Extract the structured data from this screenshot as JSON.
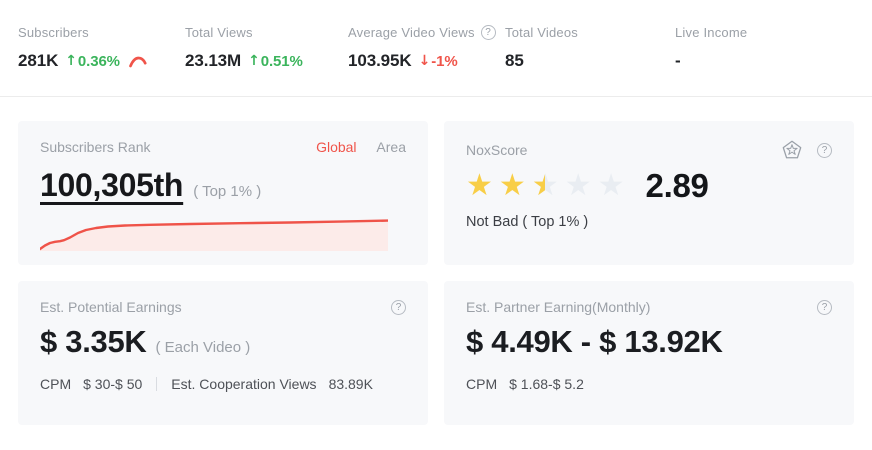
{
  "colors": {
    "green": "#3bb45c",
    "red": "#f0544a",
    "star_yellow": "#f8ce47",
    "star_empty": "#e9edf2",
    "chart_line": "#ef5349",
    "chart_fill": "#fcebe9",
    "card_bg": "#f7f8fa",
    "text_gray": "#9ba0a7"
  },
  "icons": {
    "up_arrow": "↑",
    "down_arrow": "↓",
    "help": "?",
    "star": "★"
  },
  "stats": [
    {
      "label": "Subscribers",
      "value": "281K",
      "change": "0.36%",
      "direction": "up"
    },
    {
      "label": "Total Views",
      "value": "23.13M",
      "change": "0.51%",
      "direction": "up"
    },
    {
      "label": "Average Video Views",
      "value": "103.95K",
      "change": "-1%",
      "direction": "down"
    },
    {
      "label": "Total Videos",
      "value": "85",
      "change": "",
      "direction": "none"
    },
    {
      "label": "Live Income",
      "value": "-",
      "change": "",
      "direction": "none"
    }
  ],
  "cards": {
    "subscribers_rank": {
      "title": "Subscribers Rank",
      "tabs": [
        {
          "label": "Global",
          "active": true
        },
        {
          "label": "Area",
          "active": false
        }
      ],
      "rank": "100,305th",
      "note": "( Top 1% )",
      "sparkline": [
        [
          0,
          33
        ],
        [
          5,
          29.5
        ],
        [
          10,
          27
        ],
        [
          15,
          25.8
        ],
        [
          20,
          25.2
        ],
        [
          24,
          24.2
        ],
        [
          30,
          21.5
        ],
        [
          38,
          17
        ],
        [
          46,
          14
        ],
        [
          56,
          12
        ],
        [
          68,
          10.5
        ],
        [
          85,
          9.5
        ],
        [
          110,
          8.8
        ],
        [
          150,
          8
        ],
        [
          200,
          7.2
        ],
        [
          250,
          6.5
        ],
        [
          300,
          5.6
        ],
        [
          348,
          4.6
        ]
      ]
    },
    "noxscore": {
      "title": "NoxScore",
      "stars": 2.5,
      "score": "2.89",
      "summary": "Not Bad ( Top 1% )"
    },
    "potential_earnings": {
      "title": "Est. Potential Earnings",
      "value": "$ 3.35K",
      "note": "( Each Video )",
      "cpm_label": "CPM",
      "cpm_value": "$ 30-$ 50",
      "coop_label": "Est. Cooperation Views",
      "coop_value": "83.89K"
    },
    "partner_earnings": {
      "title": "Est. Partner Earning(Monthly)",
      "value": "$ 4.49K - $ 13.92K",
      "cpm_label": "CPM",
      "cpm_value": "$ 1.68-$ 5.2"
    }
  },
  "chart_data": {
    "type": "area",
    "title": "Subscribers Rank trend (Global)",
    "xlabel": "",
    "ylabel": "",
    "legend": false,
    "grid": false,
    "axes_visible": false,
    "series": [
      {
        "name": "rank-trend",
        "values_normalized_0to1": [
          0.06,
          0.16,
          0.23,
          0.26,
          0.28,
          0.31,
          0.39,
          0.51,
          0.6,
          0.66,
          0.7,
          0.73,
          0.75,
          0.77,
          0.79,
          0.81,
          0.84,
          0.87
        ]
      }
    ]
  }
}
